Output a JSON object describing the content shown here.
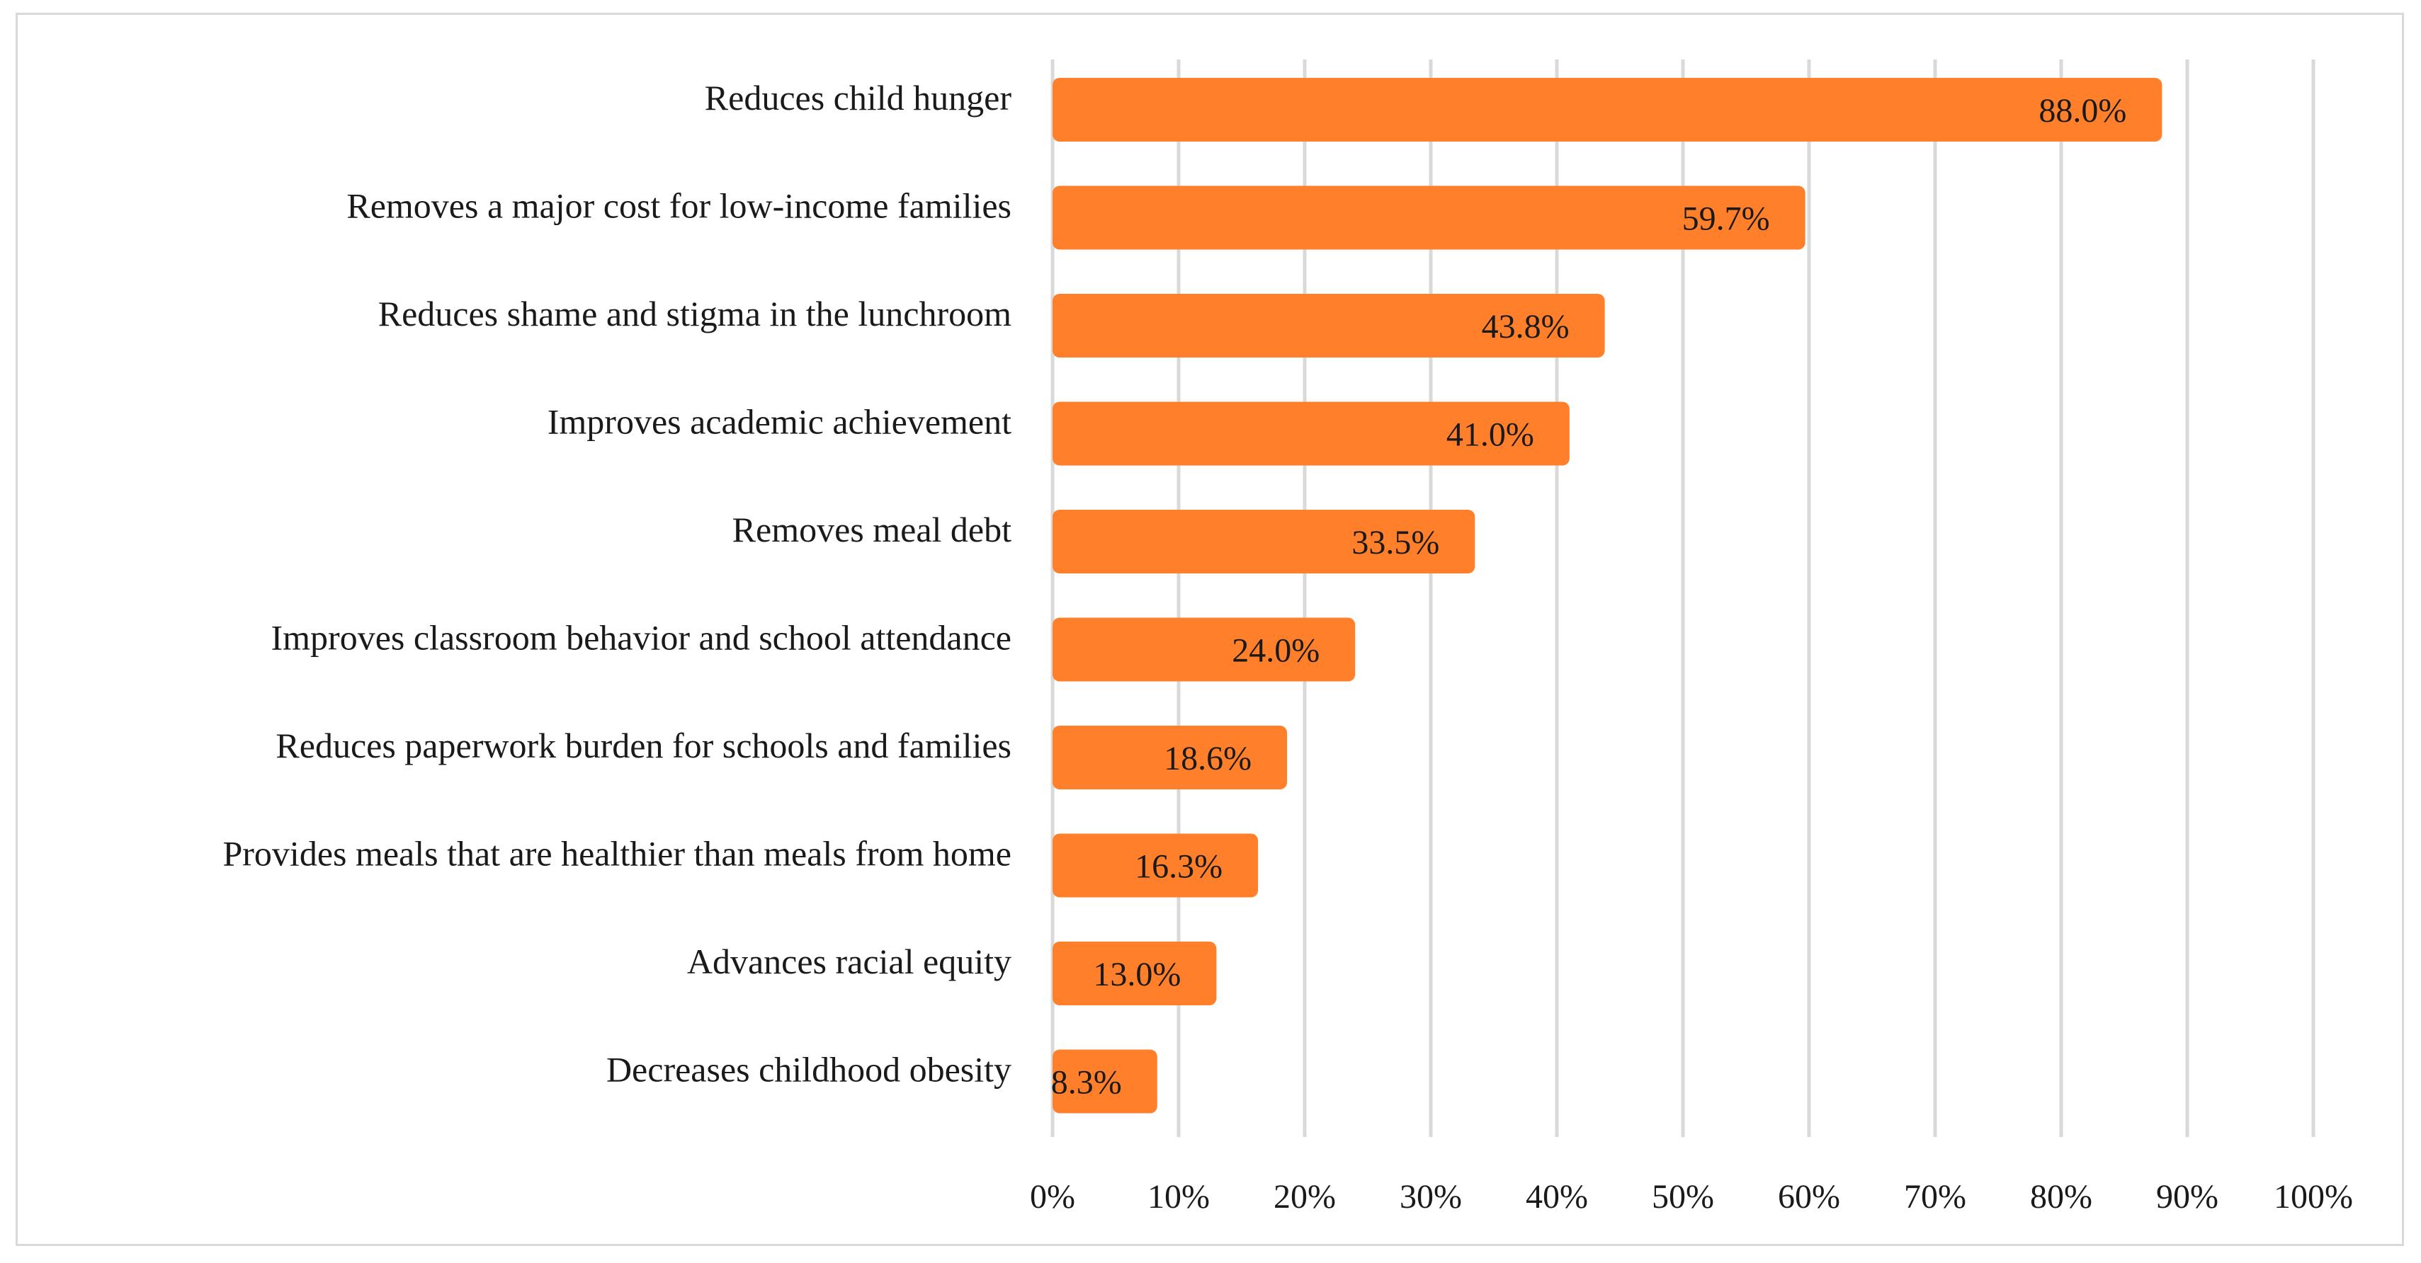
{
  "chart_data": {
    "type": "bar",
    "orientation": "horizontal",
    "categories": [
      "Reduces child hunger",
      "Removes a major cost for low-income families",
      "Reduces shame and stigma in the lunchroom",
      "Improves academic achievement",
      "Removes meal debt",
      "Improves classroom behavior and school attendance",
      "Reduces paperwork burden for schools and families",
      "Provides meals that are healthier than meals from home",
      "Advances racial equity",
      "Decreases childhood obesity"
    ],
    "values": [
      88.0,
      59.7,
      43.8,
      41.0,
      33.5,
      24.0,
      18.6,
      16.3,
      13.0,
      8.3
    ],
    "data_labels": [
      "88.0%",
      "59.7%",
      "43.8%",
      "41.0%",
      "33.5%",
      "24.0%",
      "18.6%",
      "16.3%",
      "13.0%",
      "8.3%"
    ],
    "x_ticks": [
      "0%",
      "10%",
      "20%",
      "30%",
      "40%",
      "50%",
      "60%",
      "70%",
      "80%",
      "90%",
      "100%"
    ],
    "xlim": [
      0,
      100
    ],
    "grid": true,
    "legend": "none",
    "colors": {
      "bar": "#ff7f2a",
      "grid": "#d9d9d9",
      "frame": "#d9d9d9"
    }
  }
}
